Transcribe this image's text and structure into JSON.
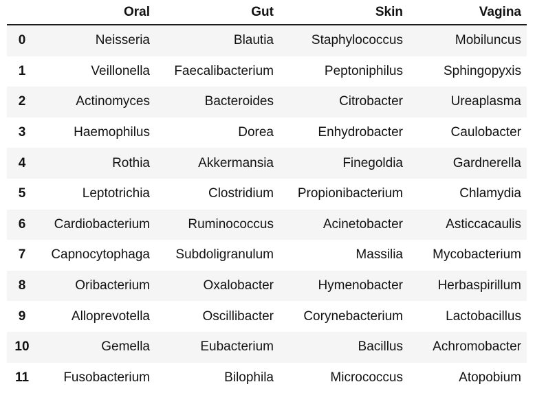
{
  "table": {
    "columns": [
      "",
      "Oral",
      "Gut",
      "Skin",
      "Vagina"
    ],
    "rows": [
      {
        "index": "0",
        "oral": "Neisseria",
        "gut": "Blautia",
        "skin": "Staphylococcus",
        "vagina": "Mobiluncus"
      },
      {
        "index": "1",
        "oral": "Veillonella",
        "gut": "Faecalibacterium",
        "skin": "Peptoniphilus",
        "vagina": "Sphingopyxis"
      },
      {
        "index": "2",
        "oral": "Actinomyces",
        "gut": "Bacteroides",
        "skin": "Citrobacter",
        "vagina": "Ureaplasma"
      },
      {
        "index": "3",
        "oral": "Haemophilus",
        "gut": "Dorea",
        "skin": "Enhydrobacter",
        "vagina": "Caulobacter"
      },
      {
        "index": "4",
        "oral": "Rothia",
        "gut": "Akkermansia",
        "skin": "Finegoldia",
        "vagina": "Gardnerella"
      },
      {
        "index": "5",
        "oral": "Leptotrichia",
        "gut": "Clostridium",
        "skin": "Propionibacterium",
        "vagina": "Chlamydia"
      },
      {
        "index": "6",
        "oral": "Cardiobacterium",
        "gut": "Ruminococcus",
        "skin": "Acinetobacter",
        "vagina": "Asticcacaulis"
      },
      {
        "index": "7",
        "oral": "Capnocytophaga",
        "gut": "Subdoligranulum",
        "skin": "Massilia",
        "vagina": "Mycobacterium"
      },
      {
        "index": "8",
        "oral": "Oribacterium",
        "gut": "Oxalobacter",
        "skin": "Hymenobacter",
        "vagina": "Herbaspirillum"
      },
      {
        "index": "9",
        "oral": "Alloprevotella",
        "gut": "Oscillibacter",
        "skin": "Corynebacterium",
        "vagina": "Lactobacillus"
      },
      {
        "index": "10",
        "oral": "Gemella",
        "gut": "Eubacterium",
        "skin": "Bacillus",
        "vagina": "Achromobacter"
      },
      {
        "index": "11",
        "oral": "Fusobacterium",
        "gut": "Bilophila",
        "skin": "Micrococcus",
        "vagina": "Atopobium"
      }
    ]
  }
}
